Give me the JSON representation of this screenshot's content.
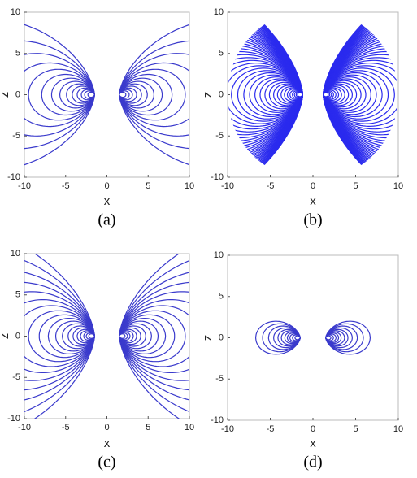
{
  "chart_data": [
    {
      "type": "contour",
      "xlabel": "x",
      "ylabel": "z",
      "caption": "(a)",
      "color": "#3a3acc",
      "xlim": [
        -10,
        10
      ],
      "ylim": [
        -10,
        10
      ],
      "xticks": [
        -10,
        -5,
        0,
        5,
        10
      ],
      "yticks": [
        -10,
        -5,
        0,
        5,
        10
      ]
    },
    {
      "type": "contour",
      "xlabel": "x",
      "ylabel": "z",
      "caption": "(b)",
      "color": "#2a2aee",
      "xlim": [
        -10,
        10
      ],
      "ylim": [
        -10,
        10
      ],
      "xticks": [
        -10,
        -5,
        0,
        5,
        10
      ],
      "yticks": [
        -10,
        -5,
        0,
        5,
        10
      ]
    },
    {
      "type": "contour",
      "xlabel": "x",
      "ylabel": "z",
      "caption": "(c)",
      "color": "#3a3acc",
      "xlim": [
        -10,
        10
      ],
      "ylim": [
        -10,
        10
      ],
      "xticks": [
        -10,
        -5,
        0,
        5,
        10
      ],
      "yticks": [
        -10,
        -5,
        0,
        5,
        10
      ]
    },
    {
      "type": "contour",
      "xlabel": "x",
      "ylabel": "z",
      "caption": "(d)",
      "color": "#3a3acc",
      "xlim": [
        -10,
        10
      ],
      "ylim": [
        -10,
        10
      ],
      "xticks": [
        -10,
        -5,
        0,
        5,
        10
      ],
      "yticks": [
        -10,
        -5,
        0,
        5,
        10
      ]
    }
  ]
}
